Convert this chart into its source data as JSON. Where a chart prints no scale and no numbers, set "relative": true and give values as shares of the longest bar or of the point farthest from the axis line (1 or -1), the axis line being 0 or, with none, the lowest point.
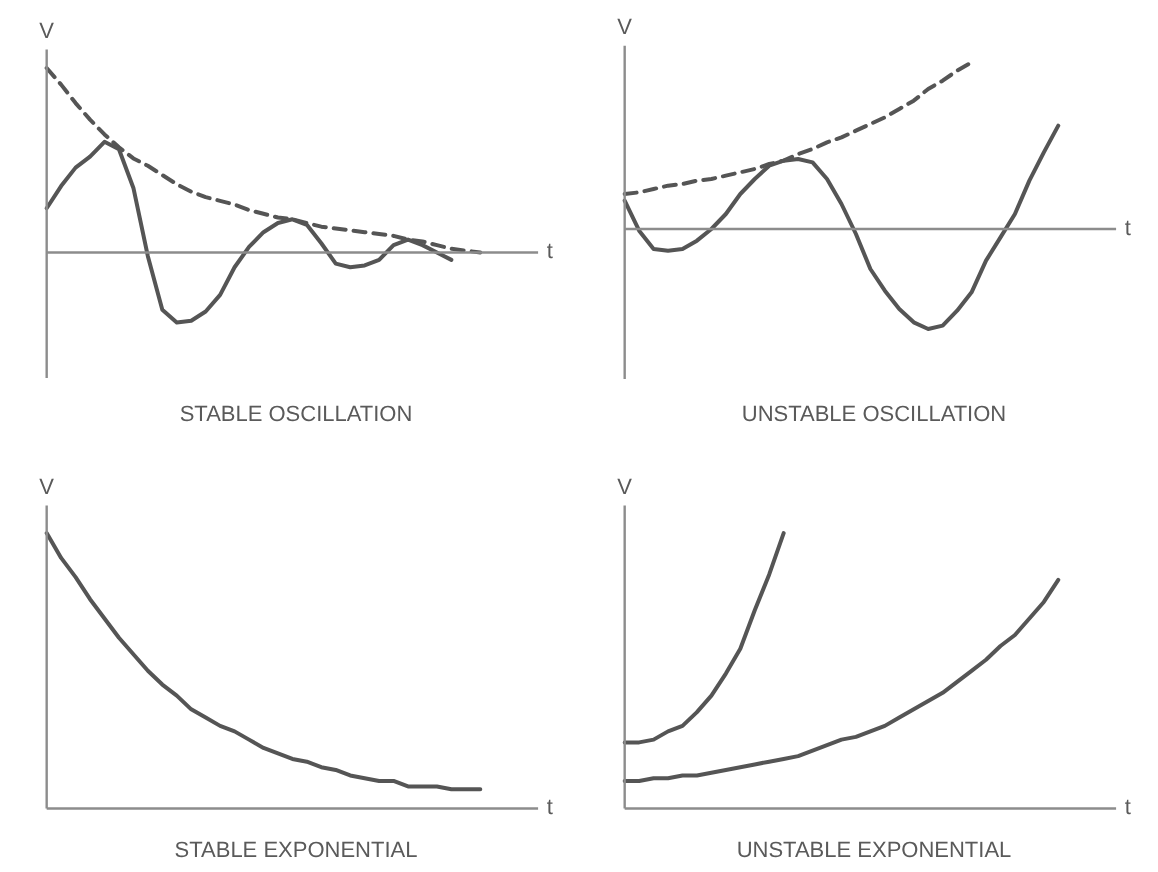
{
  "chart_data": [
    {
      "type": "line",
      "title": "STABLE OSCILLATION",
      "xlabel": "t",
      "ylabel": "V",
      "relative": true,
      "categories": [
        null,
        null,
        null,
        null,
        null,
        null,
        null,
        null,
        null,
        null,
        null,
        null,
        null,
        null,
        null,
        null,
        null,
        null,
        null,
        null,
        null,
        null,
        null,
        null,
        null,
        null,
        null,
        null,
        null,
        null,
        null
      ],
      "series": [
        {
          "color": "#555555",
          "line_style": "dashed",
          "values": [
            1.0,
            0.91,
            0.81,
            0.72,
            0.64,
            0.57,
            0.51,
            0.47,
            0.42,
            0.37,
            0.33,
            0.3,
            0.28,
            0.26,
            0.23,
            0.21,
            0.19,
            0.18,
            0.16,
            0.14,
            0.13,
            0.12,
            0.11,
            0.1,
            0.09,
            0.07,
            0.06,
            0.04,
            0.02,
            0.01,
            0.0
          ]
        },
        {
          "color": "#555555",
          "line_style": "solid",
          "values": [
            0.24,
            0.36,
            0.46,
            0.52,
            0.6,
            0.56,
            0.35,
            -0.02,
            -0.31,
            -0.38,
            -0.37,
            -0.32,
            -0.23,
            -0.08,
            0.03,
            0.11,
            0.16,
            0.18,
            0.15,
            0.05,
            -0.06,
            -0.08,
            -0.07,
            -0.04,
            0.04,
            0.07,
            0.04,
            0.0,
            -0.04,
            null,
            null
          ]
        }
      ]
    },
    {
      "type": "line",
      "title": "UNSTABLE OSCILLATION",
      "xlabel": "t",
      "ylabel": "V",
      "relative": true,
      "categories": [
        null,
        null,
        null,
        null,
        null,
        null,
        null,
        null,
        null,
        null,
        null,
        null,
        null,
        null,
        null,
        null,
        null,
        null,
        null,
        null,
        null,
        null,
        null,
        null,
        null,
        null,
        null,
        null,
        null,
        null,
        null
      ],
      "series": [
        {
          "color": "#555555",
          "line_style": "dashed",
          "values": [
            0.21,
            0.22,
            0.24,
            0.26,
            0.27,
            0.29,
            0.3,
            0.32,
            0.34,
            0.36,
            0.39,
            0.41,
            0.45,
            0.48,
            0.52,
            0.55,
            0.59,
            0.63,
            0.67,
            0.72,
            0.77,
            0.84,
            0.89,
            0.95,
            1.0,
            null,
            null,
            null,
            null,
            null,
            null
          ]
        },
        {
          "color": "#555555",
          "line_style": "solid",
          "values": [
            0.17,
            -0.01,
            -0.12,
            -0.13,
            -0.12,
            -0.07,
            0.0,
            0.09,
            0.21,
            0.3,
            0.38,
            0.41,
            0.42,
            0.4,
            0.3,
            0.15,
            -0.03,
            -0.24,
            -0.37,
            -0.48,
            -0.56,
            -0.6,
            -0.58,
            -0.49,
            -0.38,
            -0.19,
            -0.05,
            0.09,
            0.29,
            0.46,
            0.62
          ]
        }
      ]
    },
    {
      "type": "line",
      "title": "STABLE EXPONENTIAL",
      "xlabel": "t",
      "ylabel": "V",
      "relative": true,
      "categories": [
        null,
        null,
        null,
        null,
        null,
        null,
        null,
        null,
        null,
        null,
        null,
        null,
        null,
        null,
        null,
        null,
        null,
        null,
        null,
        null,
        null,
        null,
        null,
        null,
        null,
        null,
        null,
        null,
        null,
        null,
        null
      ],
      "series": [
        {
          "color": "#555555",
          "line_style": "solid",
          "values": [
            1.0,
            0.91,
            0.84,
            0.76,
            0.69,
            0.62,
            0.56,
            0.5,
            0.45,
            0.41,
            0.36,
            0.33,
            0.3,
            0.28,
            0.25,
            0.22,
            0.2,
            0.18,
            0.17,
            0.15,
            0.14,
            0.12,
            0.11,
            0.1,
            0.1,
            0.08,
            0.08,
            0.08,
            0.07,
            0.07,
            0.07
          ]
        }
      ]
    },
    {
      "type": "line",
      "title": "UNSTABLE EXPONENTIAL",
      "xlabel": "t",
      "ylabel": "V",
      "relative": true,
      "categories": [
        null,
        null,
        null,
        null,
        null,
        null,
        null,
        null,
        null,
        null,
        null,
        null,
        null,
        null,
        null,
        null,
        null,
        null,
        null,
        null,
        null,
        null,
        null,
        null,
        null,
        null,
        null,
        null,
        null,
        null,
        null
      ],
      "series": [
        {
          "color": "#555555",
          "line_style": "solid",
          "values": [
            0.24,
            0.24,
            0.25,
            0.28,
            0.3,
            0.35,
            0.41,
            0.49,
            0.58,
            0.72,
            0.85,
            1.0,
            null,
            null,
            null,
            null,
            null,
            null,
            null,
            null,
            null,
            null,
            null,
            null,
            null,
            null,
            null,
            null,
            null,
            null,
            null
          ]
        },
        {
          "color": "#555555",
          "line_style": "solid",
          "values": [
            0.1,
            0.1,
            0.11,
            0.11,
            0.12,
            0.12,
            0.13,
            0.14,
            0.15,
            0.16,
            0.17,
            0.18,
            0.19,
            0.21,
            0.23,
            0.25,
            0.26,
            0.28,
            0.3,
            0.33,
            0.36,
            0.39,
            0.42,
            0.46,
            0.5,
            0.54,
            0.59,
            0.63,
            0.69,
            0.75,
            0.83
          ]
        }
      ]
    }
  ]
}
